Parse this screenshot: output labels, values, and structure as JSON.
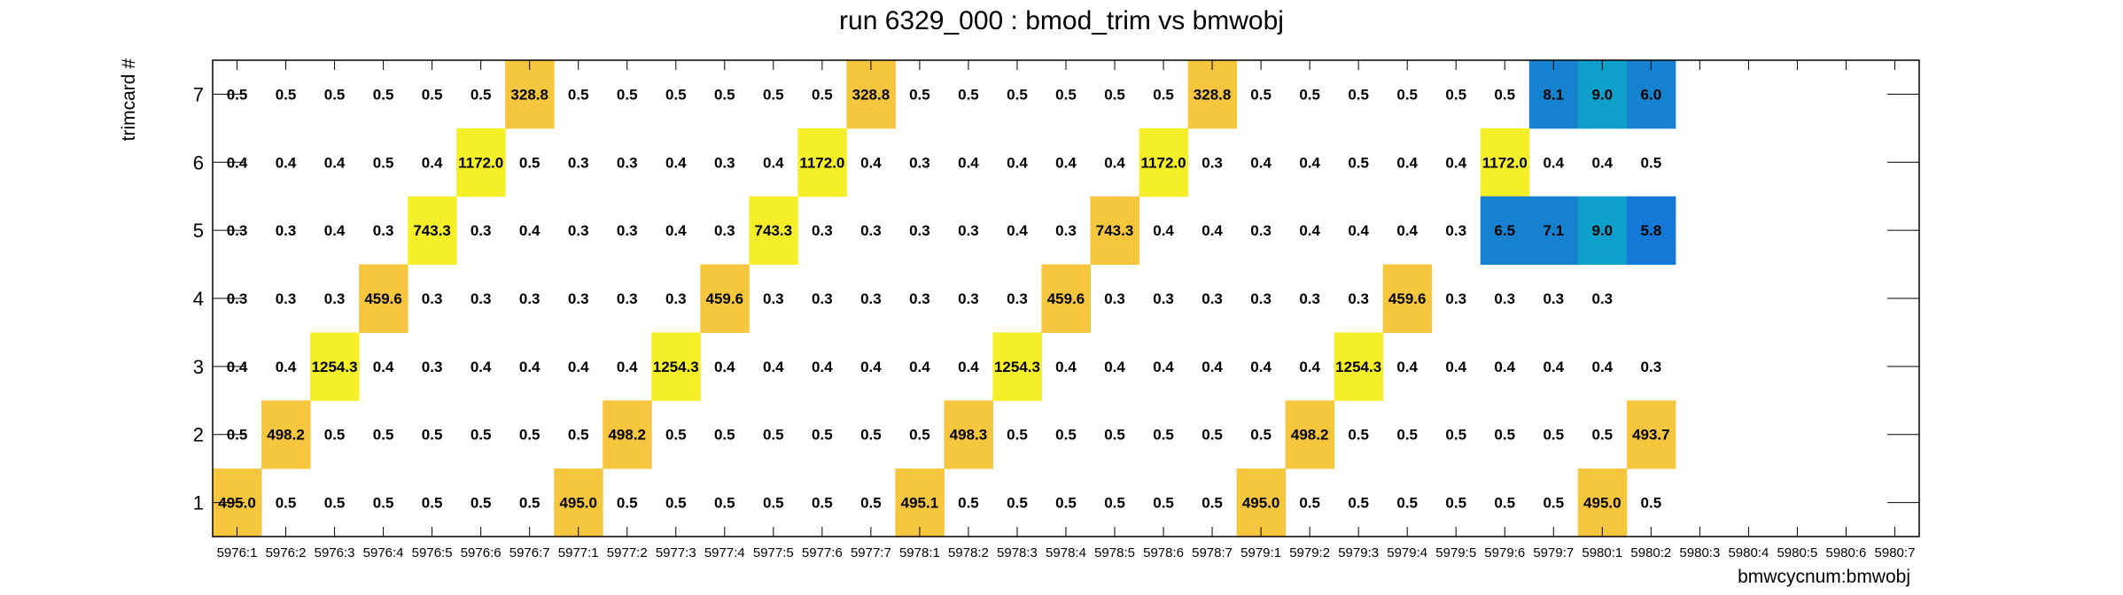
{
  "chart_data": {
    "type": "heatmap",
    "title": "run 6329_000 : bmod_trim vs bmwobj",
    "xlabel": "bmwcycnum:bmwobj",
    "ylabel": "trimcard #",
    "x_categories": [
      "5976:1",
      "5976:2",
      "5976:3",
      "5976:4",
      "5976:5",
      "5976:6",
      "5976:7",
      "5977:1",
      "5977:2",
      "5977:3",
      "5977:4",
      "5977:5",
      "5977:6",
      "5977:7",
      "5978:1",
      "5978:2",
      "5978:3",
      "5978:4",
      "5978:5",
      "5978:6",
      "5978:7",
      "5979:1",
      "5979:2",
      "5979:3",
      "5979:4",
      "5979:5",
      "5979:6",
      "5979:7",
      "5980:1",
      "5980:2",
      "5980:3",
      "5980:4",
      "5980:5",
      "5980:6",
      "5980:7"
    ],
    "y_categories": [
      "1",
      "2",
      "3",
      "4",
      "5",
      "6",
      "7"
    ],
    "rows": [
      {
        "y": "7",
        "labels": [
          "0.5",
          "0.5",
          "0.5",
          "0.5",
          "0.5",
          "0.5",
          "328.8",
          "0.5",
          "0.5",
          "0.5",
          "0.5",
          "0.5",
          "0.5",
          "328.8",
          "0.5",
          "0.5",
          "0.5",
          "0.5",
          "0.5",
          "0.5",
          "328.8",
          "0.5",
          "0.5",
          "0.5",
          "0.5",
          "0.5",
          "0.5",
          "8.1",
          "9.0",
          "6.0"
        ]
      },
      {
        "y": "6",
        "labels": [
          "0.4",
          "0.4",
          "0.4",
          "0.5",
          "0.4",
          "1172.0",
          "0.5",
          "0.3",
          "0.3",
          "0.4",
          "0.3",
          "0.4",
          "1172.0",
          "0.4",
          "0.3",
          "0.4",
          "0.4",
          "0.4",
          "0.4",
          "1172.0",
          "0.3",
          "0.4",
          "0.4",
          "0.5",
          "0.4",
          "0.4",
          "1172.0",
          "0.4",
          "0.4",
          "0.5"
        ]
      },
      {
        "y": "5",
        "labels": [
          "0.3",
          "0.3",
          "0.4",
          "0.3",
          "743.3",
          "0.3",
          "0.4",
          "0.3",
          "0.3",
          "0.4",
          "0.3",
          "743.3",
          "0.3",
          "0.3",
          "0.3",
          "0.3",
          "0.4",
          "0.3",
          "743.3",
          "0.4",
          "0.4",
          "0.3",
          "0.4",
          "0.4",
          "0.4",
          "0.3",
          "6.5",
          "7.1",
          "9.0",
          "5.8"
        ]
      },
      {
        "y": "4",
        "labels": [
          "0.3",
          "0.3",
          "0.3",
          "459.6",
          "0.3",
          "0.3",
          "0.3",
          "0.3",
          "0.3",
          "0.3",
          "459.6",
          "0.3",
          "0.3",
          "0.3",
          "0.3",
          "0.3",
          "0.3",
          "459.6",
          "0.3",
          "0.3",
          "0.3",
          "0.3",
          "0.3",
          "0.3",
          "459.6",
          "0.3",
          "0.3",
          "0.3",
          "0.3"
        ]
      },
      {
        "y": "3",
        "labels": [
          "0.4",
          "0.4",
          "1254.3",
          "0.4",
          "0.3",
          "0.4",
          "0.4",
          "0.4",
          "0.4",
          "1254.3",
          "0.4",
          "0.4",
          "0.4",
          "0.4",
          "0.4",
          "0.4",
          "1254.3",
          "0.4",
          "0.4",
          "0.4",
          "0.4",
          "0.4",
          "0.4",
          "1254.3",
          "0.4",
          "0.4",
          "0.4",
          "0.4",
          "0.4",
          "0.3"
        ]
      },
      {
        "y": "2",
        "labels": [
          "0.5",
          "498.2",
          "0.5",
          "0.5",
          "0.5",
          "0.5",
          "0.5",
          "0.5",
          "498.2",
          "0.5",
          "0.5",
          "0.5",
          "0.5",
          "0.5",
          "0.5",
          "498.3",
          "0.5",
          "0.5",
          "0.5",
          "0.5",
          "0.5",
          "0.5",
          "498.2",
          "0.5",
          "0.5",
          "0.5",
          "0.5",
          "0.5",
          "0.5",
          "493.7"
        ]
      },
      {
        "y": "1",
        "labels": [
          "495.0",
          "0.5",
          "0.5",
          "0.5",
          "0.5",
          "0.5",
          "0.5",
          "495.0",
          "0.5",
          "0.5",
          "0.5",
          "0.5",
          "0.5",
          "0.5",
          "495.1",
          "0.5",
          "0.5",
          "0.5",
          "0.5",
          "0.5",
          "0.5",
          "495.0",
          "0.5",
          "0.5",
          "0.5",
          "0.5",
          "0.5",
          "0.5",
          "495.0",
          "0.5"
        ]
      }
    ],
    "colors": {
      "high": "#f5ef29",
      "mid": "#f6c63e",
      "low_a": "#1682cf",
      "low_b": "#0e9fca",
      "low_c": "#1478d6"
    },
    "colored_cells": [
      {
        "x": "5976:7",
        "y": "7",
        "color": "mid"
      },
      {
        "x": "5977:7",
        "y": "7",
        "color": "mid"
      },
      {
        "x": "5978:7",
        "y": "7",
        "color": "mid"
      },
      {
        "x": "5979:7",
        "y": "7",
        "color": "low_a"
      },
      {
        "x": "5980:1",
        "y": "7",
        "color": "low_b"
      },
      {
        "x": "5980:2",
        "y": "7",
        "color": "low_a"
      },
      {
        "x": "5976:6",
        "y": "6",
        "color": "high"
      },
      {
        "x": "5977:6",
        "y": "6",
        "color": "high"
      },
      {
        "x": "5978:6",
        "y": "6",
        "color": "high"
      },
      {
        "x": "5979:6",
        "y": "6",
        "color": "high"
      },
      {
        "x": "5976:5",
        "y": "5",
        "color": "high"
      },
      {
        "x": "5977:5",
        "y": "5",
        "color": "high"
      },
      {
        "x": "5978:5",
        "y": "5",
        "color": "mid"
      },
      {
        "x": "5979:6",
        "y": "5",
        "color": "low_a"
      },
      {
        "x": "5979:7",
        "y": "5",
        "color": "low_a"
      },
      {
        "x": "5980:1",
        "y": "5",
        "color": "low_b"
      },
      {
        "x": "5980:2",
        "y": "5",
        "color": "low_c"
      },
      {
        "x": "5976:4",
        "y": "4",
        "color": "mid"
      },
      {
        "x": "5977:4",
        "y": "4",
        "color": "mid"
      },
      {
        "x": "5978:4",
        "y": "4",
        "color": "mid"
      },
      {
        "x": "5979:4",
        "y": "4",
        "color": "mid"
      },
      {
        "x": "5976:3",
        "y": "3",
        "color": "high"
      },
      {
        "x": "5977:3",
        "y": "3",
        "color": "high"
      },
      {
        "x": "5978:3",
        "y": "3",
        "color": "high"
      },
      {
        "x": "5979:3",
        "y": "3",
        "color": "high"
      },
      {
        "x": "5976:2",
        "y": "2",
        "color": "mid"
      },
      {
        "x": "5977:2",
        "y": "2",
        "color": "mid"
      },
      {
        "x": "5978:2",
        "y": "2",
        "color": "mid"
      },
      {
        "x": "5979:2",
        "y": "2",
        "color": "mid"
      },
      {
        "x": "5980:2",
        "y": "2",
        "color": "mid"
      },
      {
        "x": "5976:1",
        "y": "1",
        "color": "mid"
      },
      {
        "x": "5977:1",
        "y": "1",
        "color": "mid"
      },
      {
        "x": "5978:1",
        "y": "1",
        "color": "mid"
      },
      {
        "x": "5979:1",
        "y": "1",
        "color": "mid"
      },
      {
        "x": "5980:1",
        "y": "1",
        "color": "mid"
      }
    ],
    "grid": false,
    "legend": "none"
  }
}
